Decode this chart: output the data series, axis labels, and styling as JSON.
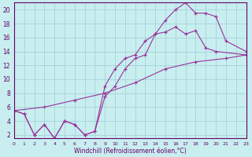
{
  "xlabel": "Windchill (Refroidissement éolien,°C)",
  "bg_color": "#c8eef0",
  "grid_color": "#9ecdd4",
  "line_color": "#993399",
  "line1": {
    "x": [
      0,
      1,
      2,
      3,
      4,
      5,
      6,
      7,
      8,
      9,
      10,
      11,
      12,
      13,
      14,
      15,
      16,
      17,
      18,
      19,
      20,
      21,
      23
    ],
    "y": [
      5.5,
      5.0,
      2.0,
      3.5,
      1.5,
      4.0,
      3.5,
      2.0,
      2.5,
      9.0,
      11.5,
      13.0,
      13.5,
      15.5,
      16.5,
      18.5,
      20.0,
      21.0,
      19.5,
      19.5,
      19.0,
      15.5,
      14.0
    ]
  },
  "line2": {
    "x": [
      0,
      1,
      2,
      3,
      4,
      5,
      6,
      7,
      8,
      9,
      10,
      11,
      12,
      13,
      14,
      15,
      16,
      17,
      18,
      19,
      20,
      23
    ],
    "y": [
      5.5,
      5.0,
      2.0,
      3.5,
      1.5,
      4.0,
      3.5,
      2.0,
      2.5,
      7.5,
      9.0,
      11.5,
      13.0,
      13.5,
      16.5,
      16.8,
      17.5,
      16.5,
      17.0,
      14.5,
      14.0,
      13.5
    ]
  },
  "line3": {
    "x": [
      0,
      3,
      6,
      9,
      12,
      15,
      18,
      21,
      23
    ],
    "y": [
      5.5,
      6.0,
      7.0,
      8.0,
      9.5,
      11.5,
      12.5,
      13.0,
      13.5
    ]
  },
  "xlim": [
    0,
    23
  ],
  "ylim": [
    1.5,
    21
  ],
  "yticks": [
    2,
    4,
    6,
    8,
    10,
    12,
    14,
    16,
    18,
    20
  ],
  "xticks": [
    0,
    1,
    2,
    3,
    4,
    5,
    6,
    7,
    8,
    9,
    10,
    11,
    12,
    13,
    14,
    15,
    16,
    17,
    18,
    19,
    20,
    21,
    22,
    23
  ]
}
